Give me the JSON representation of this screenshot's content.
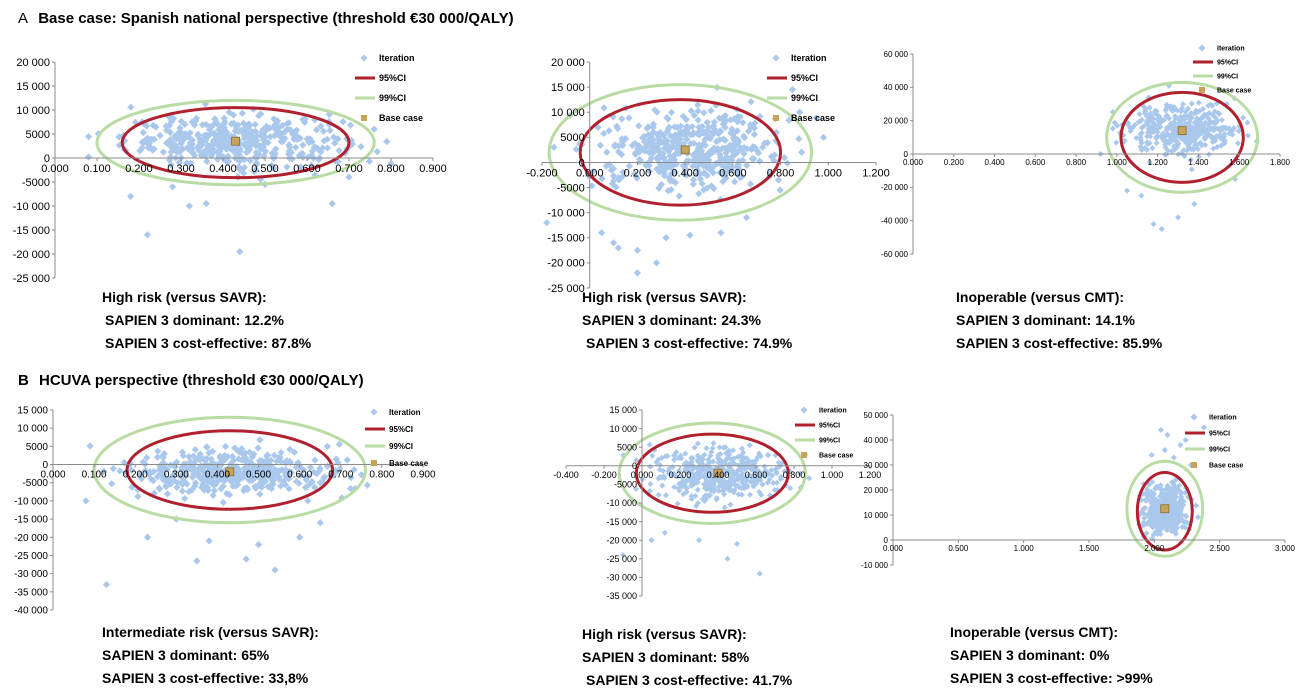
{
  "section_a": {
    "letter": "A",
    "title": "Base case: Spanish national perspective (threshold €30 000/QALY)"
  },
  "section_b": {
    "letter": "B",
    "title": "HCUVA perspective (threshold €30 000/QALY)"
  },
  "colors": {
    "iteration": "#a9c8ec",
    "ci95": "#b0202f",
    "ci99": "#b8dca3",
    "base": "#c8a45a"
  },
  "captions": [
    {
      "heading": "High risk (versus SAVR):",
      "line1": "SAPIEN 3 dominant: 12.2%",
      "line2": "SAPIEN 3 cost-effective: 87.8%"
    },
    {
      "heading": "High risk (versus SAVR):",
      "line1": "SAPIEN 3 dominant: 24.3%",
      "line2": "SAPIEN 3 cost-effective: 74.9%"
    },
    {
      "heading": "Inoperable (versus CMT):",
      "line1": "SAPIEN 3 dominant: 14.1%",
      "line2": "SAPIEN 3 cost-effective: 85.9%"
    },
    {
      "heading": "Intermediate risk (versus SAVR):",
      "line1": "SAPIEN 3 dominant: 65%",
      "line2": "SAPIEN 3 cost-effective: 33,8%"
    },
    {
      "heading": "High risk (versus SAVR):",
      "line1": "SAPIEN 3 dominant: 58%",
      "line2": "SAPIEN 3 cost-effective: 41.7%"
    },
    {
      "heading": "Inoperable (versus CMT):",
      "line1": "SAPIEN 3 dominant: 0%",
      "line2": "SAPIEN 3 cost-effective: >99%"
    }
  ],
  "chart_data": [
    {
      "type": "scatter",
      "panel": "A1",
      "xlim": [
        0,
        0.9
      ],
      "ylim": [
        -25000,
        20000
      ],
      "xticks": [
        "0.000",
        "0.100",
        "0.200",
        "0.300",
        "0.400",
        "0.500",
        "0.600",
        "0.700",
        "0.800",
        "0.900"
      ],
      "yticks": [
        "20 000",
        "15 000",
        "10 000",
        "5000",
        "0",
        "-5000",
        "-10 000",
        "-15 000",
        "-20 000",
        "-25 000"
      ],
      "legend": [
        "Iteration",
        "95%CI",
        "99%CI",
        "Base case"
      ],
      "cloud": {
        "cx": 0.43,
        "cy": 3500,
        "sx": 0.13,
        "sy": 2600,
        "n": 420,
        "xmin": 0.08,
        "xmax": 0.8
      },
      "outliers": [
        [
          0.22,
          -16000
        ],
        [
          0.44,
          -19500
        ],
        [
          0.18,
          -8000
        ],
        [
          0.32,
          -10000
        ],
        [
          0.36,
          -9500
        ],
        [
          0.66,
          -9500
        ],
        [
          0.7,
          -4000
        ],
        [
          0.76,
          6000
        ],
        [
          0.28,
          -6000
        ],
        [
          0.5,
          -5500
        ]
      ],
      "ci95": {
        "cx": 0.43,
        "cy": 3200,
        "rx": 0.27,
        "ry": 7300
      },
      "ci99": {
        "cx": 0.43,
        "cy": 3200,
        "rx": 0.33,
        "ry": 8800
      },
      "base_case": [
        0.43,
        3500
      ]
    },
    {
      "type": "scatter",
      "panel": "A2",
      "xlim": [
        -0.2,
        1.2
      ],
      "ylim": [
        -25000,
        20000
      ],
      "xticks": [
        "-0.200",
        "0.000",
        "0.200",
        "0.400",
        "0.600",
        "0.800",
        "1.000",
        "1.200"
      ],
      "yticks": [
        "20 000",
        "15 000",
        "10 000",
        "5000",
        "0",
        "-5000",
        "-10 000",
        "-15 000",
        "-20 000",
        "-25 000"
      ],
      "legend": [
        "Iteration",
        "95%CI",
        "99%CI",
        "Base case"
      ],
      "cloud": {
        "cx": 0.42,
        "cy": 2500,
        "sx": 0.19,
        "sy": 3800,
        "n": 460,
        "xmin": -0.15,
        "xmax": 0.95
      },
      "outliers": [
        [
          0.12,
          -17000
        ],
        [
          0.2,
          -17500
        ],
        [
          0.1,
          -16000
        ],
        [
          0.05,
          -14000
        ],
        [
          0.32,
          -15000
        ],
        [
          0.28,
          -20000
        ],
        [
          0.42,
          -14500
        ],
        [
          0.2,
          -22000
        ],
        [
          0.55,
          -14000
        ],
        [
          0.85,
          14500
        ],
        [
          0.98,
          5000
        ],
        [
          0.88,
          10000
        ],
        [
          -0.18,
          -12000
        ]
      ],
      "ci95": {
        "cx": 0.38,
        "cy": 2000,
        "rx": 0.42,
        "ry": 10500
      },
      "ci99": {
        "cx": 0.38,
        "cy": 2000,
        "rx": 0.55,
        "ry": 13500
      },
      "base_case": [
        0.4,
        2500
      ]
    },
    {
      "type": "scatter",
      "panel": "A3",
      "xlim": [
        0,
        1.8
      ],
      "ylim": [
        -60000,
        60000
      ],
      "xticks": [
        "0.000",
        "0.200",
        "0.400",
        "0.600",
        "0.800",
        "1.000",
        "1.200",
        "1.400",
        "1.600",
        "1.800"
      ],
      "yticks": [
        "60 000",
        "40 000",
        "20 000",
        "0",
        "-20 000",
        "-40 000",
        "-60 000"
      ],
      "legend": [
        "Iteration",
        "95%CI",
        "99%CI",
        "Base case"
      ],
      "cloud": {
        "cx": 1.33,
        "cy": 15000,
        "sx": 0.14,
        "sy": 7500,
        "n": 380,
        "xmin": 0.98,
        "xmax": 1.7
      },
      "outliers": [
        [
          1.18,
          -42000
        ],
        [
          1.22,
          -45000
        ],
        [
          1.3,
          -38000
        ],
        [
          1.05,
          -22000
        ],
        [
          1.12,
          -25000
        ],
        [
          1.38,
          -30000
        ],
        [
          0.92,
          0
        ],
        [
          1.58,
          -15000
        ]
      ],
      "ci95": {
        "cx": 1.32,
        "cy": 10000,
        "rx": 0.3,
        "ry": 27000
      },
      "ci99": {
        "cx": 1.32,
        "cy": 10000,
        "rx": 0.37,
        "ry": 33000
      },
      "base_case": [
        1.32,
        14000
      ]
    },
    {
      "type": "scatter",
      "panel": "B1",
      "xlim": [
        0,
        0.9
      ],
      "ylim": [
        -40000,
        15000
      ],
      "xticks": [
        "0.000",
        "0.100",
        "0.200",
        "0.300",
        "0.400",
        "0.500",
        "0.600",
        "0.700",
        "0.800",
        "0.900"
      ],
      "yticks": [
        "15 000",
        "10 000",
        "5000",
        "0",
        "-5000",
        "-10 000",
        "-15 000",
        "-20 000",
        "-25 000",
        "-30 000",
        "-35 000",
        "-40 000"
      ],
      "legend": [
        "Iteration",
        "95%CI",
        "99%CI",
        "Base case"
      ],
      "cloud": {
        "cx": 0.43,
        "cy": -2000,
        "sx": 0.13,
        "sy": 3300,
        "n": 420,
        "xmin": 0.09,
        "xmax": 0.78
      },
      "outliers": [
        [
          0.13,
          -33000
        ],
        [
          0.47,
          -26000
        ],
        [
          0.54,
          -29000
        ],
        [
          0.35,
          -26500
        ],
        [
          0.6,
          -20000
        ],
        [
          0.23,
          -20000
        ],
        [
          0.38,
          -21000
        ],
        [
          0.65,
          -16000
        ],
        [
          0.5,
          -22000
        ],
        [
          0.3,
          -15000
        ],
        [
          0.08,
          -10000
        ]
      ],
      "ci95": {
        "cx": 0.43,
        "cy": -1500,
        "rx": 0.25,
        "ry": 10800
      },
      "ci99": {
        "cx": 0.43,
        "cy": -1500,
        "rx": 0.33,
        "ry": 14500
      },
      "base_case": [
        0.43,
        -2000
      ]
    },
    {
      "type": "scatter",
      "panel": "B2",
      "xlim": [
        -0.4,
        1.2
      ],
      "ylim": [
        -35000,
        15000
      ],
      "xticks": [
        "-0.400",
        "-0.200",
        "0.000",
        "0.200",
        "0.400",
        "0.600",
        "0.800",
        "1.000",
        "1.200"
      ],
      "yticks": [
        "15 000",
        "10 000",
        "5000",
        "0",
        "-5000",
        "-10 000",
        "-15 000",
        "-20 000",
        "-25 000",
        "-30 000",
        "-35 000"
      ],
      "legend": [
        "Iteration",
        "95%CI",
        "99%CI",
        "Base case"
      ],
      "cloud": {
        "cx": 0.4,
        "cy": -2000,
        "sx": 0.16,
        "sy": 3300,
        "n": 440,
        "xmin": -0.12,
        "xmax": 0.88
      },
      "outliers": [
        [
          -0.1,
          -24000
        ],
        [
          0.45,
          -25000
        ],
        [
          0.62,
          -29000
        ],
        [
          0.3,
          -20000
        ],
        [
          0.12,
          -18000
        ],
        [
          0.78,
          -6000
        ],
        [
          0.86,
          3000
        ],
        [
          0.5,
          -21000
        ],
        [
          0.05,
          -20000
        ]
      ],
      "ci95": {
        "cx": 0.37,
        "cy": -2000,
        "rx": 0.4,
        "ry": 10500
      },
      "ci99": {
        "cx": 0.37,
        "cy": -2000,
        "rx": 0.49,
        "ry": 13500
      },
      "base_case": [
        0.4,
        -2000
      ]
    },
    {
      "type": "scatter",
      "panel": "B3",
      "xlim": [
        0,
        3
      ],
      "ylim": [
        -10000,
        50000
      ],
      "xticks": [
        "0.000",
        "0.500",
        "1.000",
        "1.500",
        "2.000",
        "2.500",
        "3.000"
      ],
      "yticks": [
        "50 000",
        "40 000",
        "30 000",
        "20 000",
        "10 000",
        "0",
        "-10 000"
      ],
      "legend": [
        "Iteration",
        "95%CI",
        "99%CI",
        "Base case"
      ],
      "cloud": {
        "cx": 2.08,
        "cy": 12000,
        "sx": 0.08,
        "sy": 5000,
        "n": 420,
        "xmin": 1.78,
        "xmax": 2.38
      },
      "outliers": [
        [
          2.05,
          44000
        ],
        [
          2.1,
          42000
        ],
        [
          2.2,
          38000
        ],
        [
          2.08,
          36000
        ],
        [
          2.38,
          45000
        ],
        [
          2.24,
          40000
        ],
        [
          1.98,
          34000
        ],
        [
          2.15,
          33000
        ],
        [
          2.28,
          30000
        ]
      ],
      "ci95": {
        "cx": 2.08,
        "cy": 11500,
        "rx": 0.21,
        "ry": 15500
      },
      "ci99": {
        "cx": 2.08,
        "cy": 12500,
        "rx": 0.29,
        "ry": 19000
      },
      "base_case": [
        2.08,
        12500
      ]
    }
  ]
}
